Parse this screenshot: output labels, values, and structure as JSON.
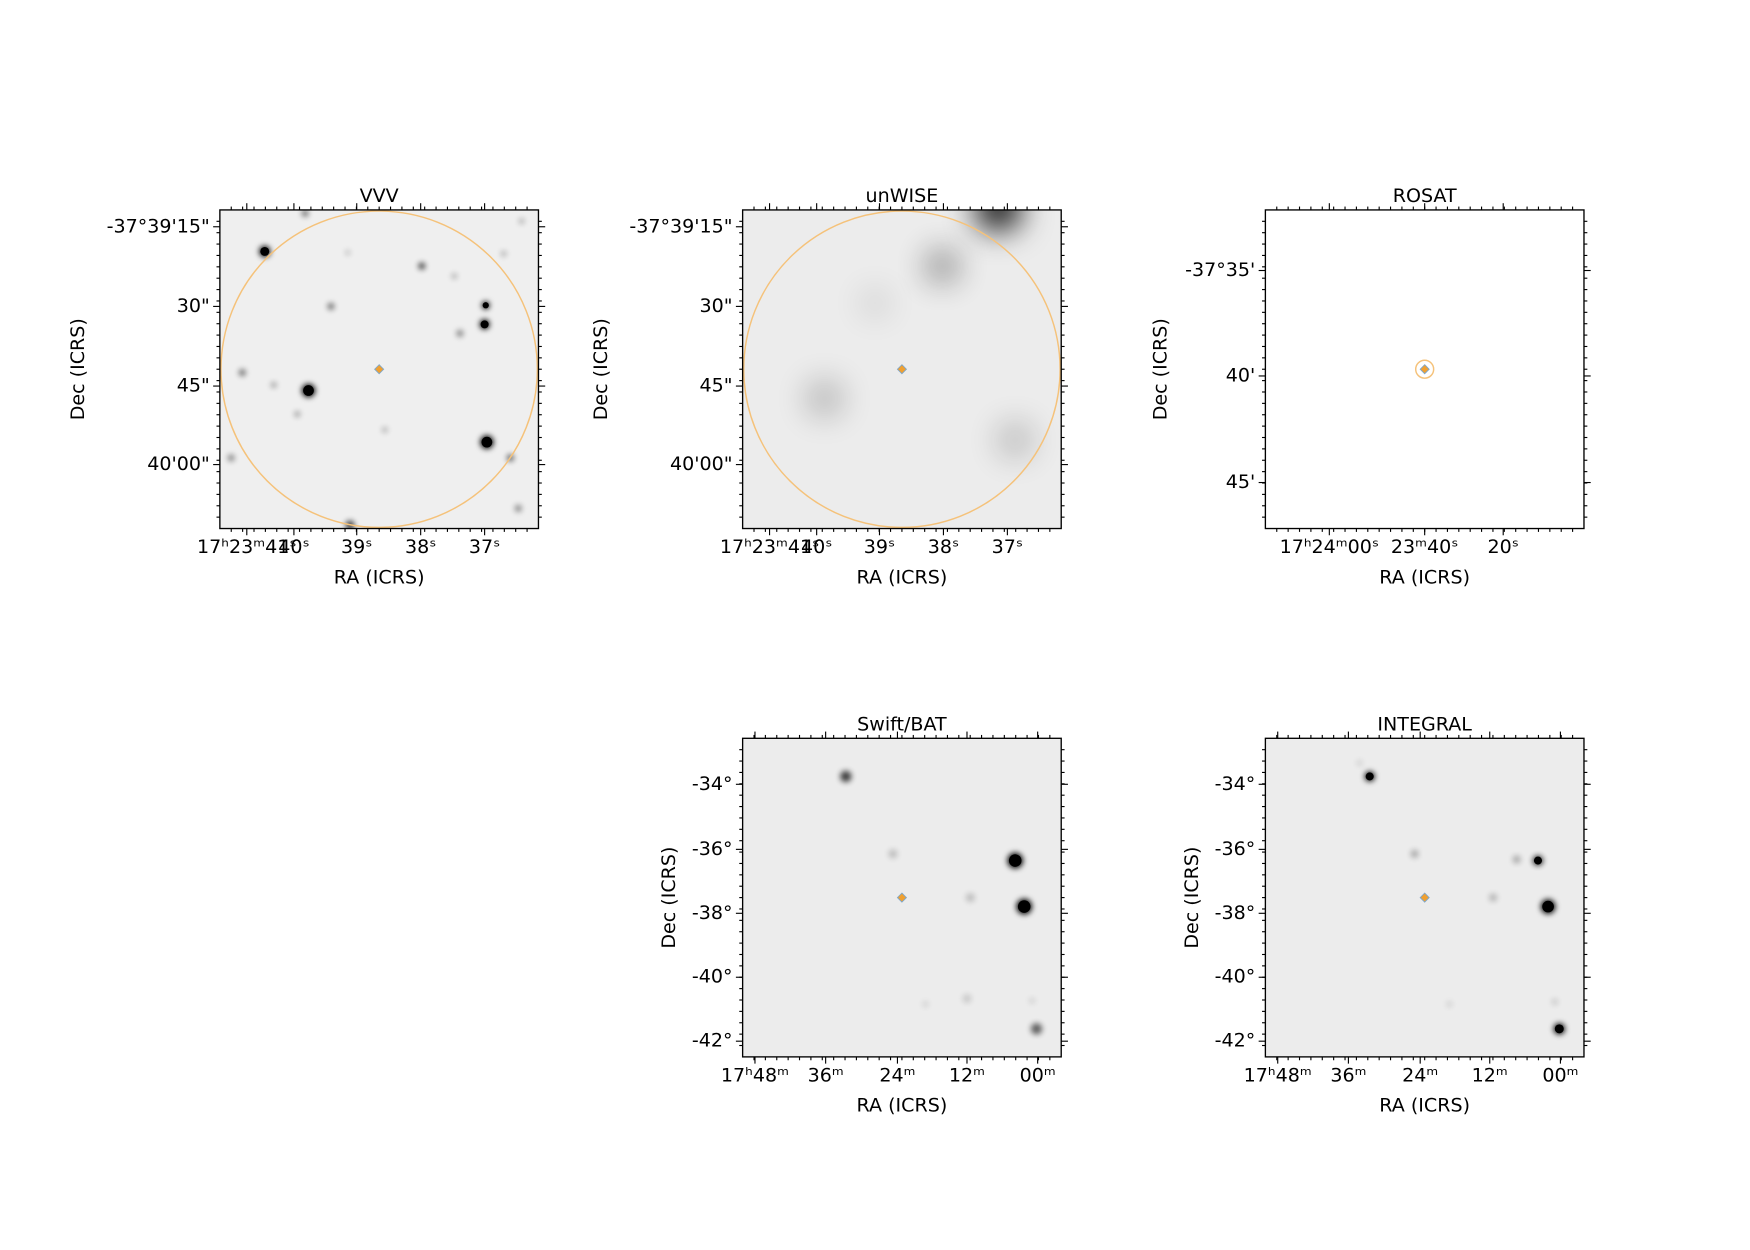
{
  "panels": [
    {
      "title": "VVV",
      "x_label": "RA (ICRS)",
      "y_label": "Dec (ICRS)",
      "x_ticks": [
        "17ʰ23ᵐ41ˢ",
        "40ˢ",
        "39ˢ",
        "38ˢ",
        "37ˢ"
      ],
      "y_ticks": [
        "-37°39'15\"",
        "30\"",
        "45\"",
        "40'00\""
      ]
    },
    {
      "title": "unWISE",
      "x_label": "RA (ICRS)",
      "y_label": "Dec (ICRS)",
      "x_ticks": [
        "17ʰ23ᵐ41ˢ",
        "40ˢ",
        "39ˢ",
        "38ˢ",
        "37ˢ"
      ],
      "y_ticks": [
        "-37°39'15\"",
        "30\"",
        "45\"",
        "40'00\""
      ]
    },
    {
      "title": "ROSAT",
      "x_label": "RA (ICRS)",
      "y_label": "Dec (ICRS)",
      "x_ticks": [
        "17ʰ24ᵐ00ˢ",
        "23ᵐ40ˢ",
        "20ˢ"
      ],
      "y_ticks": [
        "-37°35'",
        "40'",
        "45'"
      ]
    },
    {
      "title": "Swift/BAT",
      "x_label": "RA (ICRS)",
      "y_label": "Dec (ICRS)",
      "x_ticks": [
        "17ʰ48ᵐ",
        "36ᵐ",
        "24ᵐ",
        "12ᵐ",
        "00ᵐ"
      ],
      "y_ticks": [
        "-34°",
        "-36°",
        "-38°",
        "-40°",
        "-42°"
      ]
    },
    {
      "title": "INTEGRAL",
      "x_label": "RA (ICRS)",
      "y_label": "Dec (ICRS)",
      "x_ticks": [
        "17ʰ48ᵐ",
        "36ᵐ",
        "24ᵐ",
        "12ᵐ",
        "00ᵐ"
      ],
      "y_ticks": [
        "-34°",
        "-36°",
        "-38°",
        "-40°",
        "-42°"
      ]
    }
  ]
}
